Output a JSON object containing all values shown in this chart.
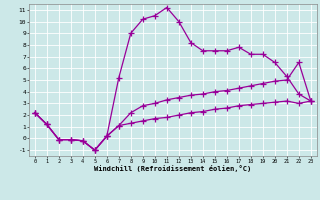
{
  "xlabel": "Windchill (Refroidissement éolien,°C)",
  "bg_color": "#cce8e8",
  "grid_color": "#ffffff",
  "line_color": "#990099",
  "xlim": [
    -0.5,
    23.5
  ],
  "ylim": [
    -1.5,
    11.5
  ],
  "xticks": [
    0,
    1,
    2,
    3,
    4,
    5,
    6,
    7,
    8,
    9,
    10,
    11,
    12,
    13,
    14,
    15,
    16,
    17,
    18,
    19,
    20,
    21,
    22,
    23
  ],
  "yticks": [
    -1,
    0,
    1,
    2,
    3,
    4,
    5,
    6,
    7,
    8,
    9,
    10,
    11
  ],
  "line1_x": [
    0,
    1,
    2,
    3,
    4,
    5,
    6,
    7,
    8,
    9,
    10,
    11,
    12,
    13,
    14,
    15,
    16,
    17,
    18,
    19,
    20,
    21,
    22,
    23
  ],
  "line1_y": [
    2.2,
    1.2,
    -0.1,
    -0.1,
    -0.2,
    -1.0,
    0.2,
    1.1,
    1.3,
    1.5,
    1.7,
    1.8,
    2.0,
    2.2,
    2.3,
    2.5,
    2.6,
    2.8,
    2.9,
    3.0,
    3.1,
    3.2,
    3.0,
    3.2
  ],
  "line2_x": [
    0,
    1,
    2,
    3,
    4,
    5,
    6,
    7,
    8,
    9,
    10,
    11,
    12,
    13,
    14,
    15,
    16,
    17,
    18,
    19,
    20,
    21,
    22,
    23
  ],
  "line2_y": [
    2.2,
    1.2,
    -0.1,
    -0.1,
    -0.2,
    -1.0,
    0.2,
    5.2,
    9.0,
    10.2,
    10.5,
    11.2,
    10.0,
    8.2,
    7.5,
    7.5,
    7.5,
    7.8,
    7.2,
    7.2,
    6.5,
    5.3,
    3.8,
    3.2
  ],
  "line3_x": [
    0,
    1,
    2,
    3,
    4,
    5,
    6,
    7,
    8,
    9,
    10,
    11,
    12,
    13,
    14,
    15,
    16,
    17,
    18,
    19,
    20,
    21,
    22,
    23
  ],
  "line3_y": [
    2.2,
    1.2,
    -0.1,
    -0.1,
    -0.2,
    -1.0,
    0.2,
    1.1,
    2.2,
    2.8,
    3.0,
    3.3,
    3.5,
    3.7,
    3.8,
    4.0,
    4.1,
    4.3,
    4.5,
    4.7,
    4.9,
    5.0,
    6.5,
    3.2
  ],
  "marker": "+",
  "markersize": 4,
  "linewidth": 0.9
}
